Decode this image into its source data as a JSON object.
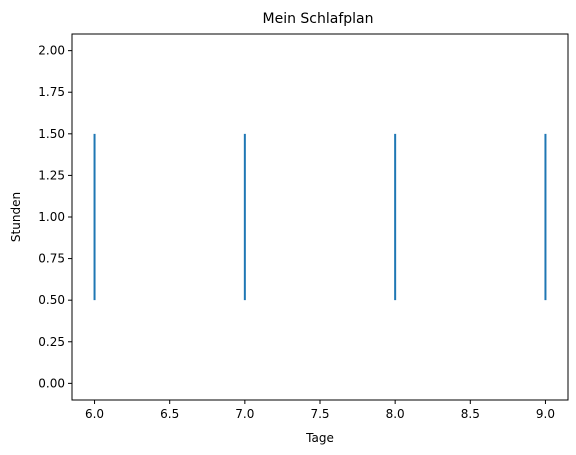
{
  "chart_data": {
    "type": "eventplot",
    "title": "Mein Schlafplan",
    "xlabel": "Tage",
    "ylabel": "Stunden",
    "xlim": [
      5.85,
      9.15
    ],
    "ylim": [
      -0.1,
      2.1
    ],
    "x_ticks": [
      6.0,
      6.5,
      7.0,
      7.5,
      8.0,
      8.5,
      9.0
    ],
    "x_tick_labels": [
      "6.0",
      "6.5",
      "7.0",
      "7.5",
      "8.0",
      "8.5",
      "9.0"
    ],
    "y_ticks": [
      0.0,
      0.25,
      0.5,
      0.75,
      1.0,
      1.25,
      1.5,
      1.75,
      2.0
    ],
    "y_tick_labels": [
      "0.00",
      "0.25",
      "0.50",
      "0.75",
      "1.00",
      "1.25",
      "1.50",
      "1.75",
      "2.00"
    ],
    "series": [
      {
        "color": "#1f77b4",
        "events": [
          6,
          7,
          8,
          9
        ],
        "line_y_range": [
          0.5,
          1.5
        ]
      }
    ],
    "grid": false,
    "legend": "none"
  }
}
